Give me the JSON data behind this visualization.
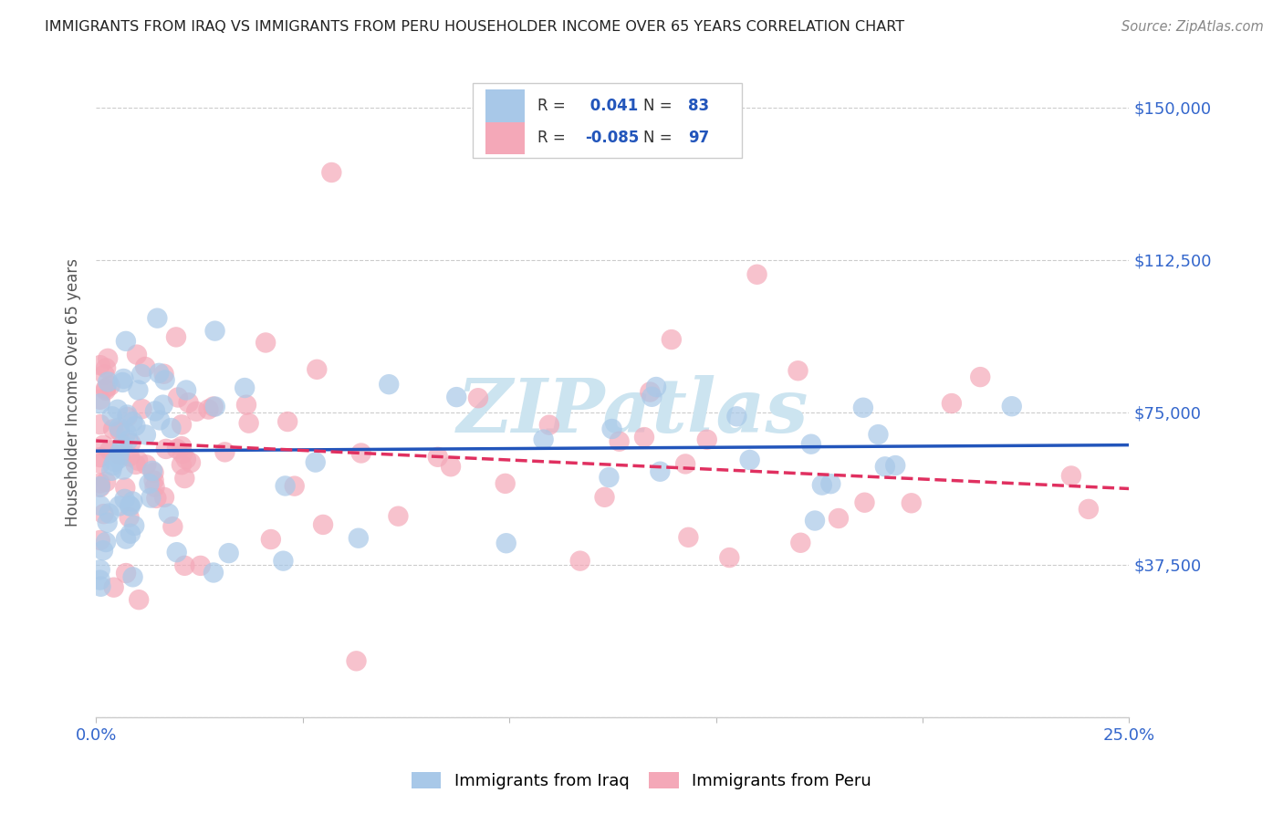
{
  "title": "IMMIGRANTS FROM IRAQ VS IMMIGRANTS FROM PERU HOUSEHOLDER INCOME OVER 65 YEARS CORRELATION CHART",
  "source": "Source: ZipAtlas.com",
  "ylabel": "Householder Income Over 65 years",
  "xlim": [
    0,
    0.25
  ],
  "ylim": [
    0,
    160000
  ],
  "ytick_positions": [
    0,
    37500,
    75000,
    112500,
    150000
  ],
  "ytick_labels": [
    "",
    "$37,500",
    "$75,000",
    "$112,500",
    "$150,000"
  ],
  "iraq_R": "0.041",
  "iraq_N": "83",
  "peru_R": "-0.085",
  "peru_N": "97",
  "iraq_color": "#a8c8e8",
  "peru_color": "#f4a8b8",
  "iraq_line_color": "#2255bb",
  "peru_line_color": "#e03060",
  "background_color": "#ffffff",
  "grid_color": "#cccccc",
  "watermark_color": "#cce4f0",
  "legend_label_iraq": "Immigrants from Iraq",
  "legend_label_peru": "Immigrants from Peru",
  "title_color": "#222222",
  "source_color": "#888888",
  "axis_label_color": "#555555",
  "tick_color": "#3366cc",
  "legend_text_color": "#333333",
  "legend_value_color": "#2255bb"
}
